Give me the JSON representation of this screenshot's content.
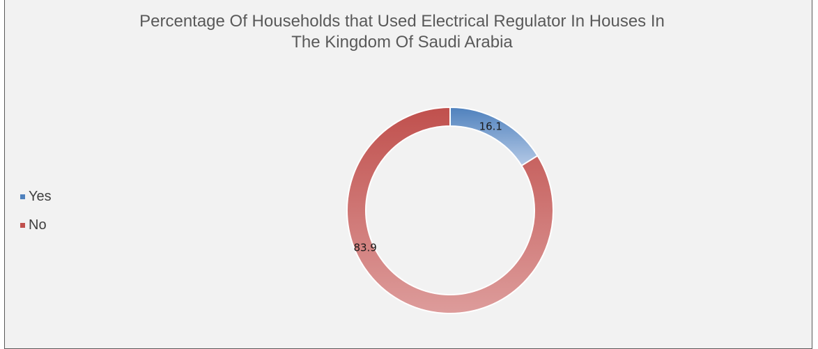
{
  "chart_data": {
    "type": "pie",
    "donut": true,
    "title": "Percentage Of Households that Used Electrical Regulator In Houses In The Kingdom Of Saudi Arabia",
    "title_lines": [
      "Percentage Of Households that Used Electrical Regulator In Houses In",
      "The Kingdom Of Saudi Arabia"
    ],
    "categories": [
      "Yes",
      "No"
    ],
    "values": [
      16.1,
      83.9
    ],
    "data_labels": [
      "16.1",
      "83.9"
    ],
    "colors": [
      "#4f81bd",
      "#c0504d"
    ],
    "gradient_light_colors": [
      "#b4c9e6",
      "#dd9c9b"
    ],
    "legend_position": "left",
    "grid": false
  }
}
